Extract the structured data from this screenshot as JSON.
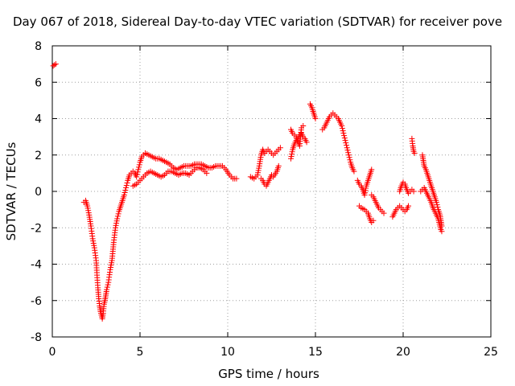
{
  "chart_data": {
    "type": "scatter",
    "title": "Day 067 of 2018, Sidereal Day-to-day VTEC variation (SDTVAR) for receiver pove",
    "xlabel": "GPS time / hours",
    "ylabel": "SDTVAR / TECUs",
    "xlim": [
      0,
      25
    ],
    "ylim": [
      -8,
      8
    ],
    "xticks": [
      0,
      5,
      10,
      15,
      20,
      25
    ],
    "yticks": [
      -8,
      -6,
      -4,
      -2,
      0,
      2,
      4,
      6,
      8
    ],
    "xtick_labels": [
      "0",
      "5",
      "10",
      "15",
      "20",
      "25"
    ],
    "ytick_labels": [
      "-8",
      "-6",
      "-4",
      "-2",
      "0",
      "2",
      "4",
      "6",
      "8"
    ],
    "grid": true,
    "marker": "+",
    "color": "#ff0000",
    "series": [
      {
        "name": "SDTVAR",
        "segments": [
          [
            [
              0.05,
              6.9
            ],
            [
              0.2,
              7.0
            ]
          ],
          [
            [
              1.8,
              -0.6
            ],
            [
              1.9,
              -0.5
            ],
            [
              2.0,
              -0.8
            ],
            [
              2.1,
              -1.3
            ],
            [
              2.2,
              -1.9
            ],
            [
              2.3,
              -2.6
            ],
            [
              2.4,
              -3.1
            ],
            [
              2.5,
              -3.8
            ],
            [
              2.55,
              -4.6
            ],
            [
              2.6,
              -5.3
            ],
            [
              2.65,
              -5.9
            ],
            [
              2.7,
              -6.3
            ],
            [
              2.75,
              -6.6
            ],
            [
              2.8,
              -6.8
            ],
            [
              2.85,
              -7.0
            ],
            [
              2.9,
              -6.7
            ],
            [
              2.95,
              -6.2
            ],
            [
              3.0,
              -6.0
            ],
            [
              3.05,
              -5.7
            ],
            [
              3.1,
              -5.4
            ],
            [
              3.2,
              -5.0
            ],
            [
              3.3,
              -4.3
            ],
            [
              3.4,
              -3.8
            ],
            [
              3.5,
              -2.8
            ],
            [
              3.6,
              -2.0
            ],
            [
              3.7,
              -1.5
            ],
            [
              3.8,
              -1.1
            ],
            [
              3.9,
              -0.8
            ],
            [
              4.0,
              -0.5
            ],
            [
              4.1,
              -0.2
            ],
            [
              4.2,
              0.2
            ],
            [
              4.3,
              0.6
            ],
            [
              4.4,
              0.9
            ],
            [
              4.5,
              1.0
            ],
            [
              4.6,
              1.1
            ],
            [
              4.7,
              1.0
            ],
            [
              4.8,
              0.8
            ],
            [
              4.9,
              1.2
            ],
            [
              5.0,
              1.6
            ],
            [
              5.1,
              1.9
            ],
            [
              5.2,
              2.0
            ],
            [
              5.3,
              2.1
            ],
            [
              5.5,
              2.0
            ],
            [
              5.7,
              1.9
            ],
            [
              5.9,
              1.8
            ],
            [
              6.1,
              1.8
            ],
            [
              6.3,
              1.7
            ],
            [
              6.5,
              1.6
            ],
            [
              6.7,
              1.5
            ],
            [
              6.9,
              1.3
            ],
            [
              7.1,
              1.2
            ],
            [
              7.3,
              1.3
            ],
            [
              7.5,
              1.4
            ],
            [
              7.7,
              1.4
            ],
            [
              7.9,
              1.4
            ],
            [
              8.1,
              1.5
            ],
            [
              8.3,
              1.5
            ],
            [
              8.5,
              1.5
            ],
            [
              8.7,
              1.4
            ],
            [
              8.9,
              1.3
            ],
            [
              9.1,
              1.3
            ],
            [
              9.3,
              1.4
            ],
            [
              9.5,
              1.4
            ],
            [
              9.7,
              1.4
            ],
            [
              9.9,
              1.2
            ],
            [
              10.1,
              0.9
            ],
            [
              10.3,
              0.7
            ],
            [
              10.5,
              0.7
            ]
          ],
          [
            [
              4.6,
              0.3
            ],
            [
              4.8,
              0.4
            ],
            [
              5.0,
              0.6
            ],
            [
              5.2,
              0.8
            ],
            [
              5.4,
              1.0
            ],
            [
              5.6,
              1.1
            ],
            [
              5.8,
              1.0
            ],
            [
              6.0,
              0.9
            ],
            [
              6.2,
              0.8
            ],
            [
              6.4,
              0.9
            ],
            [
              6.6,
              1.1
            ],
            [
              6.8,
              1.1
            ],
            [
              7.0,
              1.0
            ],
            [
              7.2,
              0.9
            ],
            [
              7.4,
              1.0
            ],
            [
              7.6,
              1.0
            ],
            [
              7.8,
              0.9
            ],
            [
              8.0,
              1.1
            ],
            [
              8.2,
              1.3
            ],
            [
              8.4,
              1.3
            ],
            [
              8.6,
              1.2
            ],
            [
              8.8,
              1.0
            ]
          ],
          [
            [
              11.3,
              0.8
            ],
            [
              11.5,
              0.7
            ],
            [
              11.7,
              0.9
            ],
            [
              11.8,
              1.4
            ],
            [
              11.9,
              2.0
            ],
            [
              12.0,
              2.3
            ],
            [
              12.1,
              2.1
            ],
            [
              12.2,
              2.2
            ],
            [
              12.3,
              2.3
            ],
            [
              12.4,
              2.2
            ],
            [
              12.5,
              2.1
            ],
            [
              12.6,
              2.0
            ],
            [
              12.8,
              2.2
            ],
            [
              13.0,
              2.4
            ]
          ],
          [
            [
              11.9,
              0.7
            ],
            [
              12.0,
              0.6
            ],
            [
              12.1,
              0.4
            ],
            [
              12.2,
              0.3
            ],
            [
              12.3,
              0.5
            ],
            [
              12.4,
              0.7
            ],
            [
              12.5,
              0.9
            ],
            [
              12.6,
              0.8
            ],
            [
              12.8,
              1.1
            ],
            [
              12.9,
              1.4
            ]
          ],
          [
            [
              13.6,
              1.8
            ],
            [
              13.7,
              2.3
            ],
            [
              13.8,
              2.6
            ],
            [
              13.9,
              2.8
            ],
            [
              14.0,
              2.9
            ],
            [
              14.1,
              3.1
            ],
            [
              14.2,
              3.2
            ],
            [
              14.3,
              3.0
            ],
            [
              14.4,
              2.9
            ],
            [
              14.5,
              2.7
            ]
          ],
          [
            [
              13.6,
              3.4
            ],
            [
              13.7,
              3.2
            ],
            [
              13.8,
              3.1
            ],
            [
              13.9,
              3.0
            ],
            [
              14.0,
              2.7
            ],
            [
              14.1,
              2.5
            ],
            [
              14.2,
              3.5
            ],
            [
              14.3,
              3.6
            ]
          ],
          [
            [
              14.7,
              4.8
            ],
            [
              14.8,
              4.6
            ],
            [
              14.9,
              4.3
            ],
            [
              15.0,
              4.0
            ]
          ],
          [
            [
              15.4,
              3.4
            ],
            [
              15.5,
              3.5
            ],
            [
              15.6,
              3.7
            ],
            [
              15.7,
              3.9
            ],
            [
              15.8,
              4.1
            ],
            [
              15.9,
              4.2
            ],
            [
              16.0,
              4.3
            ],
            [
              16.1,
              4.2
            ],
            [
              16.2,
              4.1
            ],
            [
              16.3,
              4.0
            ],
            [
              16.4,
              3.8
            ],
            [
              16.5,
              3.6
            ],
            [
              16.6,
              3.2
            ],
            [
              16.7,
              2.8
            ],
            [
              16.8,
              2.4
            ],
            [
              16.9,
              2.0
            ],
            [
              17.0,
              1.6
            ],
            [
              17.1,
              1.3
            ],
            [
              17.2,
              1.1
            ]
          ],
          [
            [
              17.4,
              0.6
            ],
            [
              17.5,
              0.4
            ],
            [
              17.6,
              0.3
            ],
            [
              17.7,
              0.1
            ],
            [
              17.8,
              -0.2
            ],
            [
              17.9,
              0.3
            ],
            [
              18.0,
              0.6
            ],
            [
              18.1,
              0.9
            ],
            [
              18.2,
              1.2
            ]
          ],
          [
            [
              17.5,
              -0.8
            ],
            [
              17.6,
              -0.9
            ],
            [
              17.8,
              -1.0
            ],
            [
              18.0,
              -1.2
            ],
            [
              18.1,
              -1.5
            ],
            [
              18.2,
              -1.7
            ],
            [
              18.3,
              -1.6
            ]
          ],
          [
            [
              18.2,
              -0.2
            ],
            [
              18.3,
              -0.3
            ],
            [
              18.4,
              -0.5
            ],
            [
              18.5,
              -0.7
            ],
            [
              18.6,
              -0.9
            ],
            [
              18.7,
              -1.0
            ],
            [
              18.8,
              -1.1
            ],
            [
              18.9,
              -1.2
            ]
          ],
          [
            [
              19.4,
              -1.4
            ],
            [
              19.5,
              -1.2
            ],
            [
              19.6,
              -1.0
            ],
            [
              19.7,
              -0.9
            ],
            [
              19.8,
              -0.8
            ],
            [
              19.9,
              -0.9
            ],
            [
              20.0,
              -1.0
            ],
            [
              20.1,
              -1.1
            ],
            [
              20.2,
              -1.0
            ],
            [
              20.3,
              -0.8
            ]
          ],
          [
            [
              19.8,
              0.0
            ],
            [
              19.9,
              0.3
            ],
            [
              20.0,
              0.5
            ],
            [
              20.1,
              0.4
            ],
            [
              20.2,
              0.1
            ],
            [
              20.3,
              -0.1
            ],
            [
              20.4,
              0.0
            ],
            [
              20.5,
              0.1
            ],
            [
              20.6,
              0.0
            ]
          ],
          [
            [
              20.5,
              2.9
            ],
            [
              20.55,
              2.5
            ],
            [
              20.6,
              2.2
            ],
            [
              20.65,
              2.1
            ]
          ],
          [
            [
              21.0,
              0.0
            ],
            [
              21.1,
              0.1
            ],
            [
              21.2,
              0.2
            ],
            [
              21.3,
              0.0
            ],
            [
              21.4,
              -0.2
            ],
            [
              21.5,
              -0.4
            ],
            [
              21.6,
              -0.6
            ],
            [
              21.7,
              -0.9
            ],
            [
              21.8,
              -1.1
            ],
            [
              21.9,
              -1.3
            ],
            [
              22.0,
              -1.5
            ],
            [
              22.05,
              -1.7
            ],
            [
              22.1,
              -1.9
            ],
            [
              22.15,
              -2.1
            ],
            [
              22.2,
              -2.2
            ]
          ],
          [
            [
              21.1,
              2.0
            ],
            [
              21.15,
              1.7
            ],
            [
              21.2,
              1.4
            ],
            [
              21.3,
              1.2
            ],
            [
              21.4,
              0.9
            ],
            [
              21.5,
              0.6
            ],
            [
              21.6,
              0.3
            ],
            [
              21.7,
              0.0
            ],
            [
              21.8,
              -0.3
            ],
            [
              21.9,
              -0.6
            ],
            [
              22.0,
              -1.0
            ],
            [
              22.1,
              -1.3
            ],
            [
              22.15,
              -1.6
            ],
            [
              22.2,
              -1.9
            ]
          ]
        ]
      }
    ]
  }
}
